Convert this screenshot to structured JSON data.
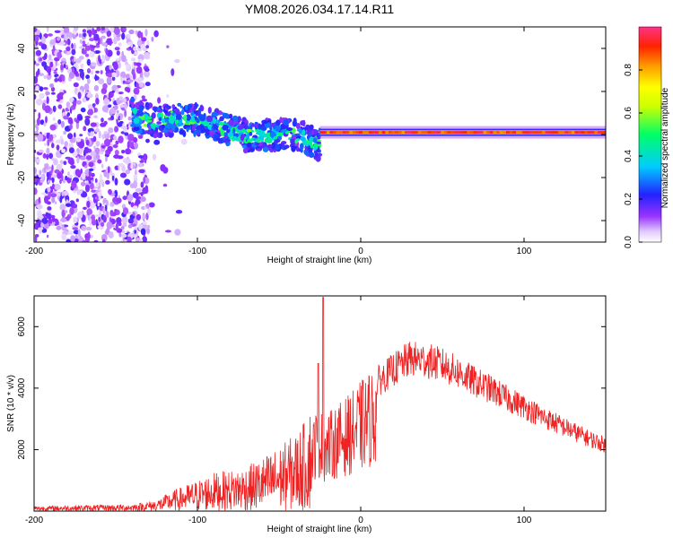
{
  "figure_title": "YM08.2026.034.17.14.R11",
  "chart_data": [
    {
      "type": "heatmap",
      "title": "YM08.2026.034.17.14.R11",
      "xlabel": "Height of straight line (km)",
      "ylabel": "Frequency (Hz)",
      "xlim": [
        -200,
        150
      ],
      "ylim": [
        -50,
        50
      ],
      "x_ticks": [
        -200,
        -100,
        0,
        100
      ],
      "y_ticks": [
        -40,
        -20,
        0,
        20,
        40
      ],
      "x_tick_labels": [
        "-200",
        "-100",
        "0",
        "100"
      ],
      "y_tick_labels": [
        "-40",
        "-20",
        "0",
        "20",
        "40"
      ],
      "colorbar": {
        "label": "Normalized spectral amplitude",
        "range": [
          0,
          1
        ],
        "ticks": [
          0.0,
          0.2,
          0.4,
          0.6,
          0.8
        ],
        "tick_labels": [
          "0.0",
          "0.2",
          "0.4",
          "0.6",
          "0.8"
        ]
      },
      "features": [
        {
          "name": "scattered noise",
          "x_range": [
            -200,
            -130
          ],
          "y_range": [
            -50,
            50
          ],
          "amplitude": 0.15
        },
        {
          "name": "descending band",
          "x_range": [
            -140,
            -25
          ],
          "center_freq_start": 10,
          "center_freq_end": -4,
          "amplitude": 0.4
        },
        {
          "name": "strong line",
          "x_range": [
            -25,
            150
          ],
          "center_freq": 1,
          "amplitude": 0.95
        }
      ]
    },
    {
      "type": "line",
      "xlabel": "Height of straight line (km)",
      "ylabel": "SNR (10 * v/v)",
      "xlim": [
        -200,
        150
      ],
      "ylim": [
        0,
        7000
      ],
      "x_ticks": [
        -200,
        -100,
        0,
        100
      ],
      "y_ticks": [
        2000,
        4000,
        6000
      ],
      "x_tick_labels": [
        "-200",
        "-100",
        "0",
        "100"
      ],
      "y_tick_labels": [
        "2000",
        "4000",
        "6000"
      ],
      "series": [
        {
          "name": "SNR",
          "color": "#ee2222",
          "envelope": {
            "x": [
              -200,
              -140,
              -125,
              -115,
              -100,
              -90,
              -80,
              -70,
              -60,
              -50,
              -40,
              -35,
              -30,
              -27,
              -25,
              -22,
              -20,
              -15,
              -10,
              -5,
              0,
              10,
              20,
              30,
              40,
              50,
              60,
              70,
              80,
              90,
              100,
              110,
              120,
              130,
              140,
              150
            ],
            "y": [
              120,
              160,
              260,
              480,
              720,
              900,
              950,
              1050,
              1250,
              1500,
              1800,
              2050,
              2500,
              3000,
              2900,
              2700,
              2800,
              3000,
              3200,
              3400,
              3700,
              4200,
              4600,
              4950,
              4900,
              4750,
              4500,
              4200,
              3950,
              3650,
              3400,
              3100,
              2850,
              2600,
              2350,
              2150
            ]
          },
          "peaks": [
            {
              "x": -23,
              "y": 6950
            },
            {
              "x": -26,
              "y": 4800
            }
          ]
        }
      ]
    }
  ]
}
